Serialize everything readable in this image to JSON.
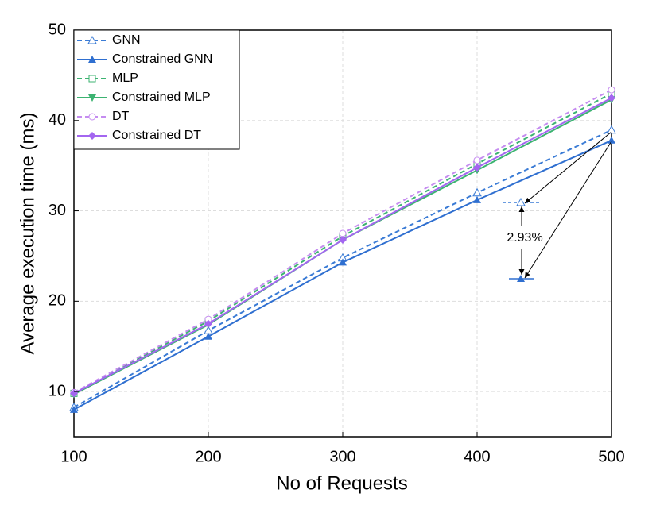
{
  "chart_data": {
    "type": "line",
    "x_label": "No of Requests",
    "y_label": "Average execution time (ms)",
    "x": [
      100,
      200,
      300,
      400,
      500
    ],
    "xlim": [
      100,
      500
    ],
    "xticks": [
      100,
      200,
      300,
      400,
      500
    ],
    "ylim": [
      5,
      50
    ],
    "yticks": [
      10,
      20,
      30,
      40,
      50
    ],
    "grid": true,
    "legend": "upper left",
    "annotation": "2.93%",
    "series": [
      {
        "name": "GNN",
        "color": "#3a7bd5",
        "dashed": true,
        "marker": "triangle-open",
        "values": [
          8.25,
          16.75,
          24.8,
          32.0,
          38.95
        ]
      },
      {
        "name": "Constrained GNN",
        "color": "#2f6fd0",
        "dashed": false,
        "marker": "triangle",
        "values": [
          8.0,
          16.1,
          24.3,
          31.2,
          37.8
        ]
      },
      {
        "name": "MLP",
        "color": "#3cb371",
        "dashed": true,
        "marker": "square-open",
        "values": [
          9.8,
          17.8,
          27.2,
          35.2,
          43.0
        ]
      },
      {
        "name": "Constrained MLP",
        "color": "#3cb371",
        "dashed": false,
        "marker": "triangle-down",
        "values": [
          9.7,
          17.4,
          26.8,
          34.5,
          42.3
        ]
      },
      {
        "name": "DT",
        "color": "#c58cf0",
        "dashed": true,
        "marker": "circle-open",
        "values": [
          9.9,
          18.0,
          27.5,
          35.6,
          43.4
        ]
      },
      {
        "name": "Constrained DT",
        "color": "#a366f0",
        "dashed": false,
        "marker": "diamond",
        "values": [
          9.8,
          17.5,
          26.8,
          34.8,
          42.5
        ]
      }
    ]
  }
}
